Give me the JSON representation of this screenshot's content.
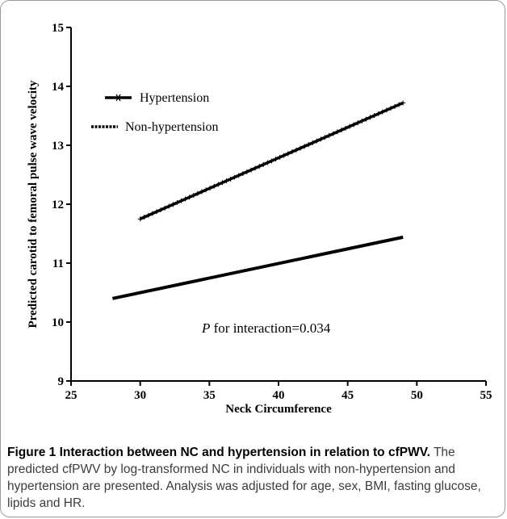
{
  "chart_data": {
    "type": "line",
    "xlabel": "Neck Circumference",
    "ylabel": "Predicted carotid to femoral pulse wave velocity",
    "xlim": [
      25,
      55
    ],
    "ylim": [
      9,
      15
    ],
    "xticks": [
      25,
      30,
      35,
      40,
      45,
      50,
      55
    ],
    "yticks": [
      9,
      10,
      11,
      12,
      13,
      14,
      15
    ],
    "grid": false,
    "legend_position": "top-left",
    "series": [
      {
        "name": "Hypertension",
        "x": [
          30,
          49
        ],
        "y": [
          11.75,
          13.72
        ],
        "style": "solid-star-markers"
      },
      {
        "name": "Non-hypertension",
        "x": [
          28,
          49
        ],
        "y": [
          10.4,
          11.44
        ],
        "style": "dotted"
      }
    ],
    "annotation": {
      "italic": "P",
      "text": " for interaction=0.034"
    }
  },
  "caption": {
    "title": "Figure 1 Interaction between NC and hypertension in relation to cfPWV.",
    "body": " The predicted cfPWV by log-transformed NC in individuals with non-hypertension and hypertension are presented. Analysis was adjusted for age, sex, BMI, fasting glucose, lipids and HR."
  },
  "colors": {
    "line": "#000000",
    "caption_text": "#3c3c3c",
    "border": "#9a9a9a"
  }
}
